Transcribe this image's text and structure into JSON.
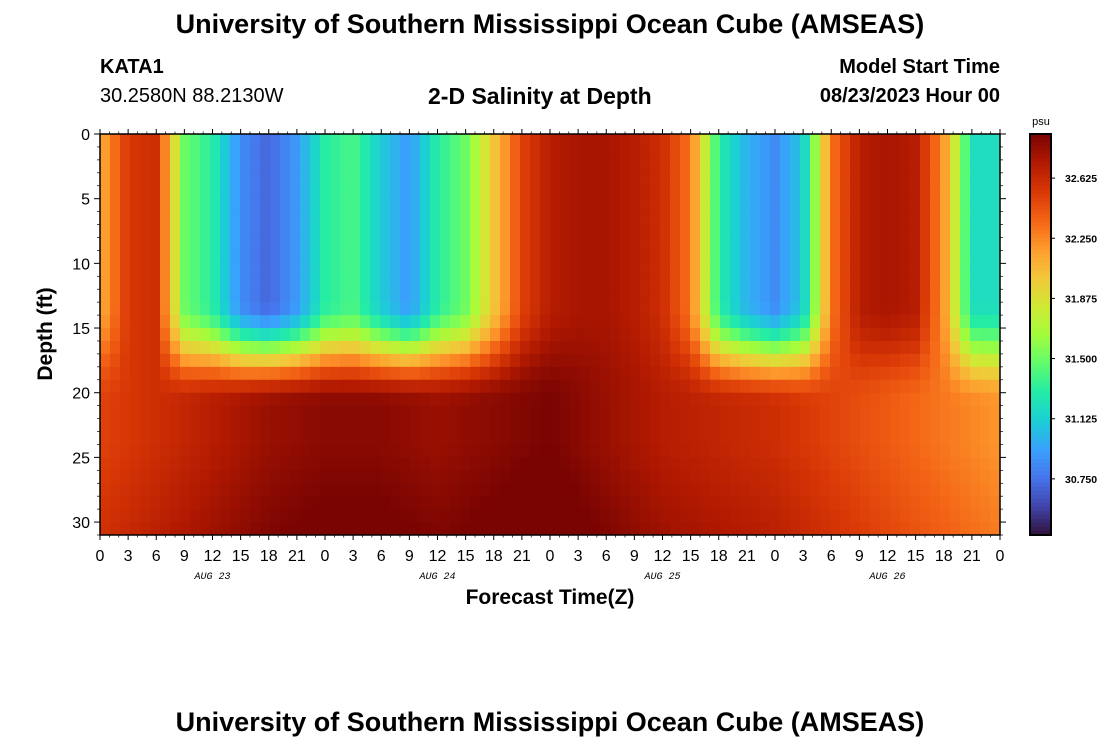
{
  "header": {
    "title": "University of Southern Mississippi Ocean Cube (AMSEAS)",
    "station": "KATA1",
    "coords": "30.2580N  88.2130W",
    "subtitle": "2-D Salinity at Depth",
    "start_label": "Model Start Time",
    "start_value": "08/23/2023 Hour 00"
  },
  "footer": {
    "title": "University of Southern Mississippi Ocean Cube (AMSEAS)"
  },
  "chart_data": {
    "type": "heatmap",
    "title": "2-D Salinity at Depth",
    "xlabel": "Forecast Time(Z)",
    "ylabel": "Depth (ft)",
    "xlim": [
      0,
      96
    ],
    "ylim": [
      0,
      31
    ],
    "y_inverted": true,
    "x_tick_labels": [
      "0",
      "3",
      "6",
      "9",
      "12",
      "15",
      "18",
      "21",
      "0",
      "3",
      "6",
      "9",
      "12",
      "15",
      "18",
      "21",
      "0",
      "3",
      "6",
      "9",
      "12",
      "15",
      "18",
      "21",
      "0",
      "3",
      "6",
      "9",
      "12",
      "15",
      "18",
      "21",
      "0"
    ],
    "x_tick_hours": [
      0,
      3,
      6,
      9,
      12,
      15,
      18,
      21,
      24,
      27,
      30,
      33,
      36,
      39,
      42,
      45,
      48,
      51,
      54,
      57,
      60,
      63,
      66,
      69,
      72,
      75,
      78,
      81,
      84,
      87,
      90,
      93,
      96
    ],
    "date_labels": [
      {
        "label": "AUG 23",
        "hour": 12
      },
      {
        "label": "AUG 24",
        "hour": 36
      },
      {
        "label": "AUG 25",
        "hour": 60
      },
      {
        "label": "AUG 26",
        "hour": 84
      }
    ],
    "y_ticks": [
      0,
      5,
      10,
      15,
      20,
      25,
      30
    ],
    "colorbar": {
      "unit": "psu",
      "min": 30.4,
      "max": 32.9,
      "ticks": [
        32.625,
        32.25,
        31.875,
        31.5,
        31.125,
        30.75
      ],
      "tick_labels": [
        "32.625",
        "32.250",
        "31.875",
        "31.500",
        "31.125",
        "30.750"
      ],
      "colors": [
        "#30123b",
        "#4145ab",
        "#4675ed",
        "#39a2fc",
        "#1bcfd4",
        "#24eca6",
        "#61fc6c",
        "#a4fc3b",
        "#d1e834",
        "#f3c63a",
        "#fe9b2d",
        "#f36315",
        "#d93806",
        "#b11901",
        "#7a0402"
      ]
    },
    "grid_depths_ft": [
      0,
      2,
      4,
      6,
      8,
      10,
      12,
      14,
      16,
      18,
      20,
      22,
      24,
      26,
      28,
      30,
      31
    ],
    "grid_hours": [
      0,
      3,
      6,
      9,
      12,
      15,
      18,
      21,
      24,
      27,
      30,
      33,
      36,
      39,
      42,
      45,
      48,
      51,
      54,
      57,
      60,
      63,
      66,
      69,
      72,
      75,
      78,
      81,
      84,
      87,
      90,
      93,
      96
    ],
    "surface_salinity_psu": [
      32.1,
      32.55,
      32.6,
      31.5,
      31.3,
      30.85,
      30.7,
      30.9,
      31.3,
      31.4,
      31.1,
      30.9,
      31.3,
      31.5,
      32.0,
      32.5,
      32.7,
      32.75,
      32.75,
      32.7,
      32.6,
      32.3,
      31.3,
      31.0,
      30.85,
      31.1,
      32.3,
      32.7,
      32.75,
      32.7,
      32.2,
      31.2,
      31.2
    ],
    "layer_salinity_psu": [
      32.5,
      32.6,
      32.7,
      32.8,
      32.85,
      32.85,
      32.8,
      32.85,
      32.9,
      32.8,
      32.7,
      32.65,
      32.6,
      32.5,
      32.4,
      32.3,
      32.2
    ],
    "salinity_psu_note": "Values estimated from color scale; surface row (0-15 ft) and deep layer (20-31 ft) trend profiles"
  }
}
